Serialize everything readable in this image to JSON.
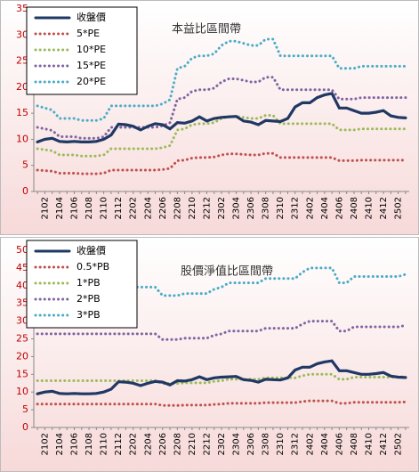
{
  "chart_data": [
    {
      "type": "line",
      "annotation": "本益比區間帶",
      "categories": [
        null,
        "2102",
        null,
        "2104",
        null,
        "2106",
        null,
        "2108",
        null,
        "2110",
        null,
        "2112",
        null,
        "2202",
        null,
        "2204",
        null,
        "2206",
        null,
        "2208",
        null,
        "2210",
        null,
        "2212",
        null,
        "2302",
        null,
        "2304",
        null,
        "2306",
        null,
        "2308",
        null,
        "2310",
        null,
        "2312",
        null,
        "2402",
        null,
        "2404",
        null,
        "2406",
        null,
        "2408",
        null,
        "2410",
        null,
        "2412",
        null,
        "2502",
        null
      ],
      "ylim": [
        0,
        35
      ],
      "yticks": [
        0,
        5,
        10,
        15,
        20,
        25,
        30,
        35
      ],
      "grid": false,
      "legend": "top-left",
      "series": [
        {
          "name": "收盤價",
          "color": "#1f3864",
          "line_style": "solid",
          "values": [
            9.5,
            10.0,
            10.2,
            9.6,
            9.5,
            9.6,
            9.5,
            9.5,
            9.6,
            10.0,
            10.8,
            12.9,
            12.8,
            12.5,
            11.8,
            12.5,
            13.0,
            12.8,
            12.0,
            13.2,
            13.1,
            13.5,
            14.3,
            13.5,
            14.0,
            14.2,
            14.3,
            14.4,
            13.5,
            13.3,
            12.8,
            13.6,
            13.5,
            13.4,
            14.0,
            16.2,
            17.0,
            17.0,
            18.0,
            18.5,
            18.8,
            16.0,
            16.0,
            15.5,
            15.0,
            15.0,
            15.2,
            15.5,
            14.5,
            14.2,
            14.1
          ]
        },
        {
          "name": "5*PE",
          "color": "#c0504d",
          "line_style": "dotted",
          "values": [
            4.1,
            4.0,
            3.9,
            3.5,
            3.5,
            3.5,
            3.4,
            3.4,
            3.4,
            3.5,
            4.1,
            4.1,
            4.1,
            4.1,
            4.1,
            4.1,
            4.1,
            4.2,
            4.4,
            5.9,
            6.0,
            6.4,
            6.5,
            6.5,
            6.6,
            7.0,
            7.2,
            7.2,
            7.1,
            7.0,
            7.0,
            7.3,
            7.3,
            6.5,
            6.5,
            6.5,
            6.5,
            6.5,
            6.5,
            6.5,
            6.5,
            5.9,
            5.9,
            5.9,
            6.0,
            6.0,
            6.0,
            6.0,
            6.0,
            6.0,
            6.0
          ]
        },
        {
          "name": "10*PE",
          "color": "#9bbb59",
          "line_style": "dotted",
          "values": [
            8.2,
            8.0,
            7.8,
            7.0,
            7.0,
            7.0,
            6.8,
            6.8,
            6.8,
            7.0,
            8.2,
            8.2,
            8.2,
            8.2,
            8.2,
            8.2,
            8.2,
            8.4,
            8.8,
            11.8,
            12.0,
            12.8,
            13.0,
            13.0,
            13.2,
            14.0,
            14.4,
            14.4,
            14.2,
            14.0,
            14.0,
            14.6,
            14.6,
            13.0,
            13.0,
            13.0,
            13.0,
            13.0,
            13.0,
            13.0,
            13.0,
            11.8,
            11.8,
            11.8,
            12.0,
            12.0,
            12.0,
            12.0,
            12.0,
            12.0,
            12.0
          ]
        },
        {
          "name": "15*PE",
          "color": "#8064a2",
          "line_style": "dotted",
          "values": [
            12.3,
            12.0,
            11.7,
            10.5,
            10.5,
            10.5,
            10.2,
            10.2,
            10.2,
            10.5,
            12.3,
            12.3,
            12.3,
            12.3,
            12.3,
            12.3,
            12.3,
            12.6,
            13.2,
            17.7,
            18.0,
            19.2,
            19.5,
            19.5,
            19.8,
            21.0,
            21.6,
            21.6,
            21.3,
            21.0,
            21.0,
            21.9,
            21.9,
            19.5,
            19.5,
            19.5,
            19.5,
            19.5,
            19.5,
            19.5,
            19.5,
            17.7,
            17.7,
            17.7,
            18.0,
            18.0,
            18.0,
            18.0,
            18.0,
            18.0,
            18.0
          ]
        },
        {
          "name": "20*PE",
          "color": "#4bacc6",
          "line_style": "dotted",
          "values": [
            16.4,
            16.0,
            15.6,
            14.0,
            14.0,
            14.0,
            13.6,
            13.6,
            13.6,
            14.0,
            16.4,
            16.4,
            16.4,
            16.4,
            16.4,
            16.4,
            16.4,
            16.8,
            17.6,
            23.6,
            24.0,
            25.6,
            26.0,
            26.0,
            26.4,
            28.0,
            28.8,
            28.8,
            28.4,
            28.0,
            28.0,
            29.2,
            29.2,
            26.0,
            26.0,
            26.0,
            26.0,
            26.0,
            26.0,
            26.0,
            26.0,
            23.6,
            23.6,
            23.6,
            24.0,
            24.0,
            24.0,
            24.0,
            24.0,
            24.0,
            24.0
          ]
        }
      ]
    },
    {
      "type": "line",
      "annotation": "股價淨值比區間帶",
      "categories": [
        null,
        "2102",
        null,
        "2104",
        null,
        "2106",
        null,
        "2108",
        null,
        "2110",
        null,
        "2112",
        null,
        "2202",
        null,
        "2204",
        null,
        "2206",
        null,
        "2208",
        null,
        "2210",
        null,
        "2212",
        null,
        "2302",
        null,
        "2304",
        null,
        "2306",
        null,
        "2308",
        null,
        "2310",
        null,
        "2312",
        null,
        "2402",
        null,
        "2404",
        null,
        "2406",
        null,
        "2408",
        null,
        "2410",
        null,
        "2412",
        null,
        "2502",
        null
      ],
      "ylim": [
        0,
        50
      ],
      "yticks": [
        0,
        5,
        10,
        15,
        20,
        25,
        30,
        35,
        40,
        45,
        50
      ],
      "grid": false,
      "legend": "top-left",
      "series": [
        {
          "name": "收盤價",
          "color": "#1f3864",
          "line_style": "solid",
          "values": [
            9.5,
            10.0,
            10.2,
            9.6,
            9.5,
            9.6,
            9.5,
            9.5,
            9.6,
            10.0,
            10.8,
            12.9,
            12.8,
            12.5,
            11.8,
            12.5,
            13.0,
            12.8,
            12.0,
            13.2,
            13.1,
            13.5,
            14.3,
            13.5,
            14.0,
            14.2,
            14.3,
            14.4,
            13.5,
            13.3,
            12.8,
            13.6,
            13.5,
            13.4,
            14.0,
            16.2,
            17.0,
            17.0,
            18.0,
            18.5,
            18.8,
            16.0,
            16.0,
            15.5,
            15.0,
            15.0,
            15.2,
            15.5,
            14.5,
            14.2,
            14.1
          ]
        },
        {
          "name": "0.5*PB",
          "color": "#c0504d",
          "line_style": "dotted",
          "values": [
            6.6,
            6.6,
            6.6,
            6.6,
            6.6,
            6.6,
            6.6,
            6.6,
            6.6,
            6.6,
            6.6,
            6.6,
            6.6,
            6.6,
            6.6,
            6.6,
            6.6,
            6.2,
            6.2,
            6.2,
            6.3,
            6.3,
            6.3,
            6.3,
            6.5,
            6.6,
            6.8,
            6.8,
            6.8,
            6.8,
            6.8,
            7.0,
            7.0,
            7.0,
            7.0,
            7.0,
            7.3,
            7.5,
            7.5,
            7.5,
            7.5,
            6.8,
            6.8,
            7.1,
            7.1,
            7.1,
            7.1,
            7.1,
            7.1,
            7.1,
            7.2
          ]
        },
        {
          "name": "1*PB",
          "color": "#9bbb59",
          "line_style": "dotted",
          "values": [
            13.2,
            13.2,
            13.2,
            13.2,
            13.2,
            13.2,
            13.2,
            13.2,
            13.2,
            13.2,
            13.2,
            13.2,
            13.2,
            13.2,
            13.2,
            13.2,
            13.2,
            12.4,
            12.4,
            12.4,
            12.6,
            12.6,
            12.6,
            12.6,
            13.0,
            13.2,
            13.6,
            13.6,
            13.6,
            13.6,
            13.6,
            14.0,
            14.0,
            14.0,
            14.0,
            14.0,
            14.6,
            15.0,
            15.0,
            15.0,
            15.0,
            13.6,
            13.6,
            14.2,
            14.2,
            14.2,
            14.2,
            14.2,
            14.2,
            14.2,
            14.4
          ]
        },
        {
          "name": "2*PB",
          "color": "#8064a2",
          "line_style": "dotted",
          "values": [
            26.4,
            26.4,
            26.4,
            26.4,
            26.4,
            26.4,
            26.4,
            26.4,
            26.4,
            26.4,
            26.4,
            26.4,
            26.4,
            26.4,
            26.4,
            26.4,
            26.4,
            24.8,
            24.8,
            24.8,
            25.2,
            25.2,
            25.2,
            25.2,
            26.0,
            26.4,
            27.2,
            27.2,
            27.2,
            27.2,
            27.2,
            28.0,
            28.0,
            28.0,
            28.0,
            28.0,
            29.2,
            30.0,
            30.0,
            30.0,
            30.0,
            27.2,
            27.2,
            28.4,
            28.4,
            28.4,
            28.4,
            28.4,
            28.4,
            28.4,
            28.8
          ]
        },
        {
          "name": "3*PB",
          "color": "#4bacc6",
          "line_style": "dotted",
          "values": [
            39.6,
            39.6,
            39.6,
            39.6,
            39.6,
            39.6,
            39.6,
            39.6,
            39.6,
            39.6,
            39.6,
            39.6,
            39.6,
            39.6,
            39.6,
            39.6,
            39.6,
            37.2,
            37.2,
            37.2,
            37.8,
            37.8,
            37.8,
            37.8,
            39.0,
            39.6,
            40.8,
            40.8,
            40.8,
            40.8,
            40.8,
            42.0,
            42.0,
            42.0,
            42.0,
            42.0,
            43.8,
            45.0,
            45.0,
            45.0,
            45.0,
            40.8,
            40.8,
            42.6,
            42.6,
            42.6,
            42.6,
            42.6,
            42.6,
            42.6,
            43.2
          ]
        }
      ]
    }
  ]
}
